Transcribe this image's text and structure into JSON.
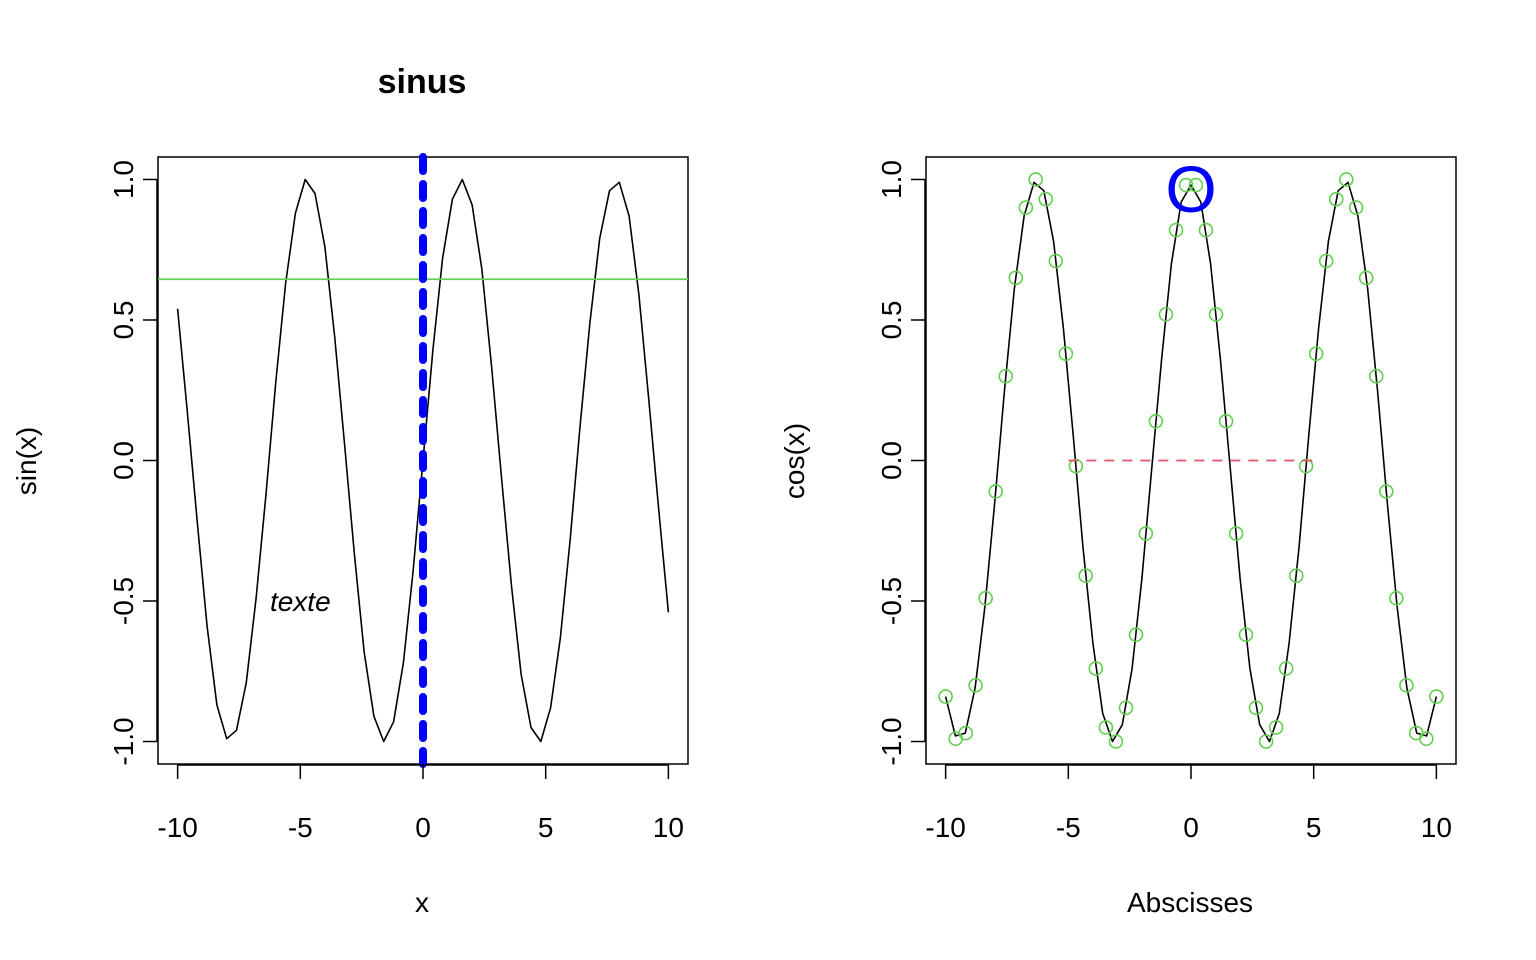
{
  "chart_data": [
    {
      "type": "line",
      "title": "sinus",
      "xlabel": "x",
      "ylabel": "sin(x)",
      "xlim": [
        -10.8,
        10.8
      ],
      "ylim": [
        -1.08,
        1.08
      ],
      "xticks": [
        -10,
        -5,
        0,
        5,
        10
      ],
      "yticks": [
        -1.0,
        -0.5,
        0.0,
        0.5,
        1.0
      ],
      "xtick_labels": [
        "-10",
        "-5",
        "0",
        "5",
        "10"
      ],
      "ytick_labels": [
        "-1.0",
        "-0.5",
        "0.0",
        "0.5",
        "1.0"
      ],
      "grid": false,
      "series": [
        {
          "x": [
            -10.0,
            -9.6,
            -9.2,
            -8.8,
            -8.4,
            -8.0,
            -7.6,
            -7.2,
            -6.8,
            -6.4,
            -6.0,
            -5.6,
            -5.2,
            -4.8,
            -4.4,
            -4.0,
            -3.6,
            -3.2,
            -2.8,
            -2.4,
            -2.0,
            -1.6,
            -1.2,
            -0.8,
            -0.4,
            0.0,
            0.4,
            0.8,
            1.2,
            1.6,
            2.0,
            2.4,
            2.8,
            3.2,
            3.6,
            4.0,
            4.4,
            4.8,
            5.2,
            5.6,
            6.0,
            6.4,
            6.8,
            7.2,
            7.6,
            8.0,
            8.4,
            8.8,
            9.2,
            9.6,
            10.0
          ],
          "y": [
            0.54,
            0.17,
            -0.22,
            -0.59,
            -0.87,
            -0.99,
            -0.96,
            -0.79,
            -0.49,
            -0.12,
            0.28,
            0.63,
            0.88,
            1.0,
            0.95,
            0.76,
            0.44,
            0.06,
            -0.33,
            -0.68,
            -0.91,
            -1.0,
            -0.93,
            -0.72,
            -0.39,
            0.0,
            0.39,
            0.72,
            0.93,
            1.0,
            0.91,
            0.68,
            0.33,
            -0.06,
            -0.44,
            -0.76,
            -0.95,
            -1.0,
            -0.88,
            -0.63,
            -0.28,
            0.12,
            0.49,
            0.79,
            0.96,
            0.99,
            0.87,
            0.59,
            0.22,
            -0.17,
            -0.54
          ],
          "color": "#000000"
        }
      ],
      "annotations": {
        "hline_y": 0.645,
        "hline_color": "#61D04F",
        "vline_x": 0,
        "vline_color": "#0000FF",
        "text": "texte",
        "text_x": -5,
        "text_y": -0.5
      }
    },
    {
      "type": "line",
      "title": "",
      "xlabel": "Abscisses",
      "ylabel": "cos(x)",
      "xlim": [
        -10.8,
        10.8
      ],
      "ylim": [
        -1.08,
        1.08
      ],
      "xticks": [
        -10,
        -5,
        0,
        5,
        10
      ],
      "yticks": [
        -1.0,
        -0.5,
        0.0,
        0.5,
        1.0
      ],
      "xtick_labels": [
        "-10",
        "-5",
        "0",
        "5",
        "10"
      ],
      "ytick_labels": [
        "-1.0",
        "-0.5",
        "0.0",
        "0.5",
        "1.0"
      ],
      "grid": false,
      "series": [
        {
          "x": [
            -10.0,
            -9.6,
            -9.2,
            -8.8,
            -8.4,
            -8.0,
            -7.6,
            -7.2,
            -6.8,
            -6.4,
            -6.0,
            -5.6,
            -5.2,
            -4.8,
            -4.4,
            -4.0,
            -3.6,
            -3.2,
            -2.8,
            -2.4,
            -2.0,
            -1.6,
            -1.2,
            -0.8,
            -0.4,
            0.0,
            0.4,
            0.8,
            1.2,
            1.6,
            2.0,
            2.4,
            2.8,
            3.2,
            3.6,
            4.0,
            4.4,
            4.8,
            5.2,
            5.6,
            6.0,
            6.4,
            6.8,
            7.2,
            7.6,
            8.0,
            8.4,
            8.8,
            9.2,
            9.6,
            10.0
          ],
          "y": [
            -0.84,
            -0.98,
            -0.97,
            -0.81,
            -0.52,
            -0.15,
            0.25,
            0.61,
            0.87,
            0.99,
            0.96,
            0.78,
            0.47,
            0.09,
            -0.31,
            -0.65,
            -0.9,
            -1.0,
            -0.94,
            -0.74,
            -0.42,
            -0.03,
            0.36,
            0.7,
            0.92,
            0.98,
            0.92,
            0.7,
            0.36,
            -0.03,
            -0.42,
            -0.74,
            -0.94,
            -1.0,
            -0.9,
            -0.65,
            -0.31,
            0.09,
            0.47,
            0.78,
            0.96,
            0.99,
            0.87,
            0.61,
            0.25,
            -0.15,
            -0.52,
            -0.81,
            -0.97,
            -0.98,
            -0.84
          ],
          "color": "#000000"
        }
      ],
      "points": {
        "color": "#61D04F",
        "x": [
          -10.0,
          -9.59,
          -9.18,
          -8.78,
          -8.37,
          -7.96,
          -7.55,
          -7.14,
          -6.73,
          -6.33,
          -5.92,
          -5.51,
          -5.1,
          -4.69,
          -4.29,
          -3.88,
          -3.47,
          -3.06,
          -2.65,
          -2.24,
          -1.84,
          -1.43,
          -1.02,
          -0.61,
          -0.2,
          0.2,
          0.61,
          1.02,
          1.43,
          1.84,
          2.24,
          2.65,
          3.06,
          3.47,
          3.88,
          4.29,
          4.69,
          5.1,
          5.51,
          5.92,
          6.33,
          6.73,
          7.14,
          7.55,
          7.96,
          8.37,
          8.78,
          9.18,
          9.59,
          10.0
        ],
        "y": [
          -0.84,
          -0.99,
          -0.97,
          -0.8,
          -0.49,
          -0.11,
          0.3,
          0.65,
          0.9,
          1.0,
          0.93,
          0.71,
          0.38,
          -0.02,
          -0.41,
          -0.74,
          -0.95,
          -1.0,
          -0.88,
          -0.62,
          -0.26,
          0.14,
          0.52,
          0.82,
          0.98,
          0.98,
          0.82,
          0.52,
          0.14,
          -0.26,
          -0.62,
          -0.88,
          -1.0,
          -0.95,
          -0.74,
          -0.41,
          -0.02,
          0.38,
          0.71,
          0.93,
          1.0,
          0.9,
          0.65,
          0.3,
          -0.11,
          -0.49,
          -0.8,
          -0.97,
          -0.99,
          -0.84
        ]
      },
      "annotations": {
        "segment_x": [
          -5,
          5
        ],
        "segment_y": 0,
        "segment_color": "#DF536B",
        "marker_text": "O",
        "marker_x": 0,
        "marker_y": 0.97,
        "marker_color": "#0000FF"
      }
    }
  ]
}
